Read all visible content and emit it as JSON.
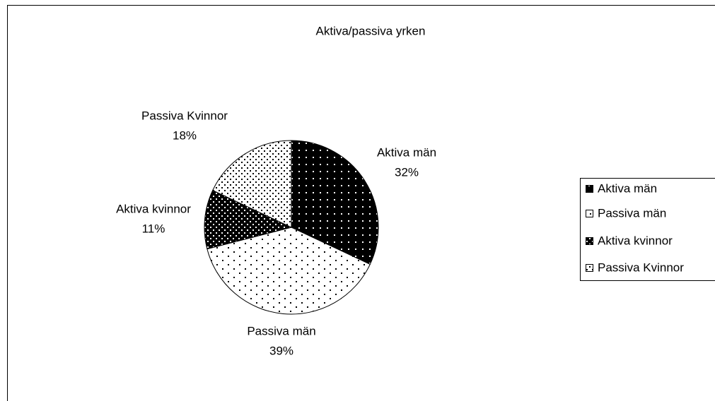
{
  "chart_data": {
    "type": "pie",
    "title": "Aktiva/passiva yrken",
    "categories": [
      "Aktiva män",
      "Passiva män",
      "Aktiva kvinnor",
      "Passiva Kvinnor"
    ],
    "values": [
      32,
      39,
      11,
      18
    ],
    "value_labels": [
      "32%",
      "39%",
      "11%",
      "18%"
    ],
    "colors": [
      "#000000",
      "#ffffff",
      "#000000",
      "#ffffff"
    ],
    "legend": "right"
  }
}
